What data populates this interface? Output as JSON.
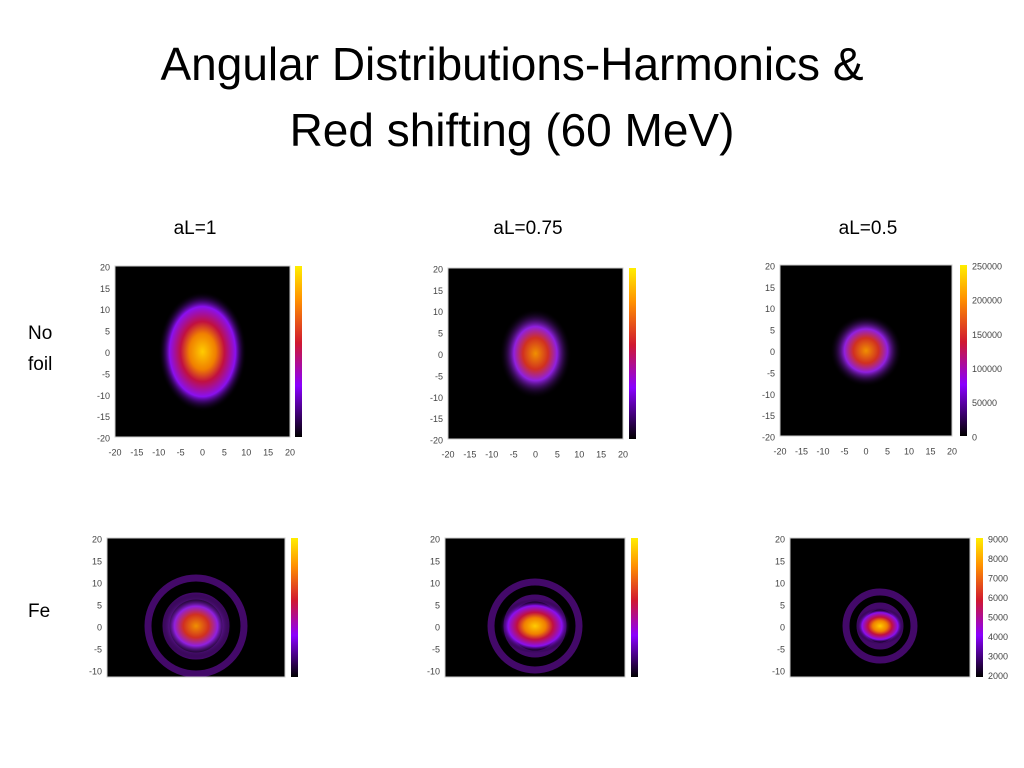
{
  "title": [
    "Angular Distributions-Harmonics &",
    "Red shifting (60 MeV)"
  ],
  "columns": [
    "aL=1",
    "aL=0.75",
    "aL=0.5"
  ],
  "rows": [
    {
      "label": [
        "No",
        "foil"
      ],
      "yticks": [
        20,
        15,
        10,
        5,
        0,
        -5,
        -10,
        -15,
        -20
      ],
      "xticks": [
        -20,
        -15,
        -10,
        -5,
        0,
        5,
        10,
        15,
        20
      ],
      "colorbar": [
        250000,
        200000,
        150000,
        100000,
        50000,
        0
      ]
    },
    {
      "label": [
        "Fe"
      ],
      "yticks": [
        20,
        15,
        10,
        5,
        0,
        -5,
        -10
      ],
      "colorbar": [
        9000,
        8000,
        7000,
        6000,
        5000,
        4000,
        3000,
        2000
      ]
    }
  ]
}
